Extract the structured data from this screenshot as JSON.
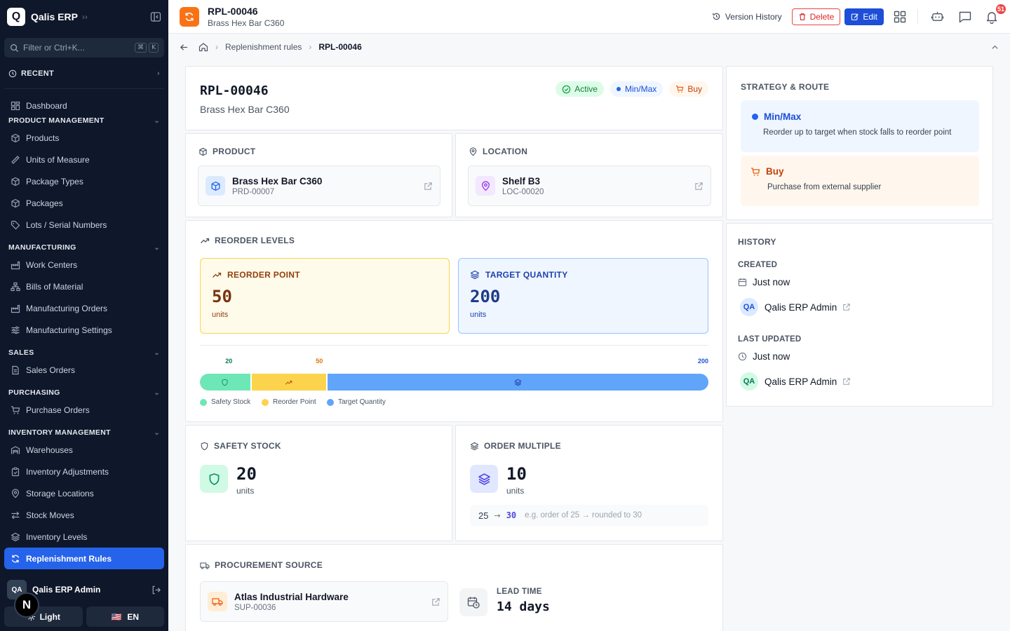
{
  "sidebar": {
    "logo_letter": "Q",
    "app_name": "Qalis ERP",
    "filter_placeholder": "Filter or Ctrl+K...",
    "shortcut_keys": [
      "⌘",
      "K"
    ],
    "recent_label": "RECENT",
    "dashboard_label": "Dashboard",
    "sections": [
      {
        "title": "PRODUCT MANAGEMENT",
        "items": [
          {
            "label": "Products",
            "icon": "box-icon"
          },
          {
            "label": "Units of Measure",
            "icon": "ruler-icon"
          },
          {
            "label": "Package Types",
            "icon": "box-icon"
          },
          {
            "label": "Packages",
            "icon": "box-icon"
          },
          {
            "label": "Lots / Serial Numbers",
            "icon": "tag-icon"
          }
        ]
      },
      {
        "title": "MANUFACTURING",
        "items": [
          {
            "label": "Work Centers",
            "icon": "factory-icon"
          },
          {
            "label": "Bills of Material",
            "icon": "hierarchy-icon"
          },
          {
            "label": "Manufacturing Orders",
            "icon": "factory-icon"
          },
          {
            "label": "Manufacturing Settings",
            "icon": "sliders-icon"
          }
        ]
      },
      {
        "title": "SALES",
        "items": [
          {
            "label": "Sales Orders",
            "icon": "document-icon"
          }
        ]
      },
      {
        "title": "PURCHASING",
        "items": [
          {
            "label": "Purchase Orders",
            "icon": "cart-icon"
          }
        ]
      },
      {
        "title": "INVENTORY MANAGEMENT",
        "items": [
          {
            "label": "Warehouses",
            "icon": "warehouse-icon"
          },
          {
            "label": "Inventory Adjustments",
            "icon": "clipboard-icon"
          },
          {
            "label": "Storage Locations",
            "icon": "pin-icon"
          },
          {
            "label": "Stock Moves",
            "icon": "arrows-icon"
          },
          {
            "label": "Inventory Levels",
            "icon": "layers-icon"
          },
          {
            "label": "Replenishment Rules",
            "icon": "refresh-icon",
            "active": true
          }
        ]
      }
    ],
    "user_initials": "QA",
    "user_name": "Qalis ERP Admin",
    "n_badge": "N",
    "theme_label": "Light",
    "lang_flag": "🇺🇸",
    "lang_label": "EN"
  },
  "topbar": {
    "record_id": "RPL-00046",
    "record_subtitle": "Brass Hex Bar C360",
    "version_history": "Version History",
    "delete_label": "Delete",
    "edit_label": "Edit",
    "notification_count": "51"
  },
  "breadcrumb": {
    "parent": "Replenishment rules",
    "current": "RPL-00046"
  },
  "header_card": {
    "id": "RPL-00046",
    "name": "Brass Hex Bar C360",
    "badges": {
      "status": "Active",
      "strategy": "Min/Max",
      "route": "Buy"
    }
  },
  "product": {
    "title": "PRODUCT",
    "name": "Brass Hex Bar C360",
    "code": "PRD-00007"
  },
  "location": {
    "title": "LOCATION",
    "name": "Shelf B3",
    "code": "LOC-00020"
  },
  "reorder_levels": {
    "title": "REORDER LEVELS",
    "reorder_point": {
      "label": "REORDER POINT",
      "value": "50",
      "unit": "units"
    },
    "target_quantity": {
      "label": "TARGET QUANTITY",
      "value": "200",
      "unit": "units"
    },
    "scale": {
      "safety": 20,
      "reorder": 50,
      "target": 200,
      "labels": [
        "20",
        "50",
        "200"
      ]
    },
    "legend": [
      "Safety Stock",
      "Reorder Point",
      "Target Quantity"
    ],
    "colors": {
      "safety": "#6ee7b7",
      "reorder": "#fcd34d",
      "target": "#60a5fa"
    }
  },
  "safety_stock": {
    "title": "SAFETY STOCK",
    "value": "20",
    "unit": "units"
  },
  "order_multiple": {
    "title": "ORDER MULTIPLE",
    "value": "10",
    "unit": "units",
    "example_from": "25",
    "example_to": "30",
    "example_text": "e.g. order of 25 → rounded to 30"
  },
  "procurement": {
    "title": "PROCUREMENT SOURCE",
    "supplier_name": "Atlas Industrial Hardware",
    "supplier_code": "SUP-00036",
    "lead_time_label": "LEAD TIME",
    "lead_time_value": "14 days"
  },
  "strategy": {
    "title": "STRATEGY & ROUTE",
    "strategy_name": "Min/Max",
    "strategy_desc": "Reorder up to target when stock falls to reorder point",
    "route_name": "Buy",
    "route_desc": "Purchase from external supplier"
  },
  "history": {
    "title": "HISTORY",
    "created_label": "CREATED",
    "created_time": "Just now",
    "created_by": "Qalis ERP Admin",
    "created_initials": "QA",
    "updated_label": "LAST UPDATED",
    "updated_time": "Just now",
    "updated_by": "Qalis ERP Admin",
    "updated_initials": "QA"
  }
}
